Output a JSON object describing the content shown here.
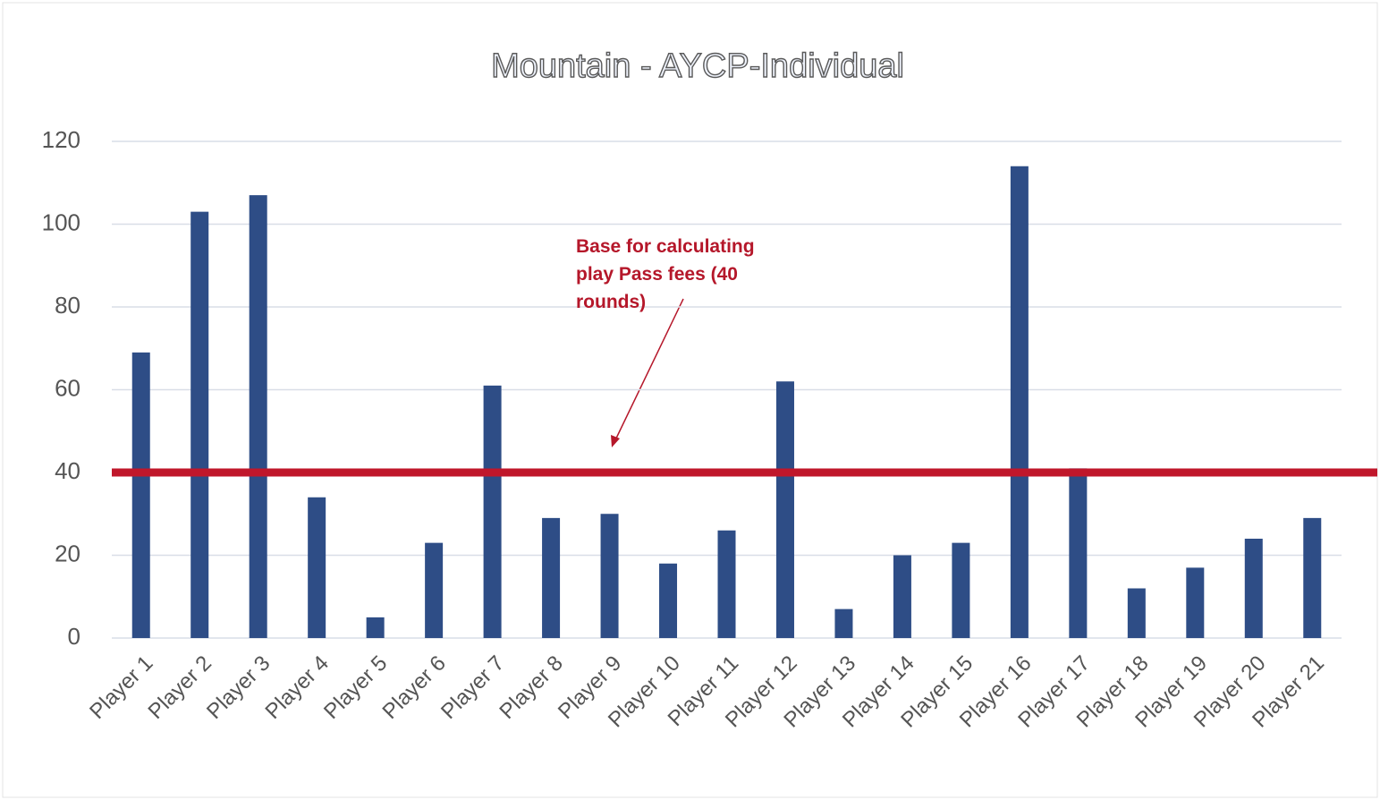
{
  "chart_data": {
    "type": "bar",
    "title": "Mountain - AYCP-Individual",
    "categories": [
      "Player 1",
      "Player 2",
      "Player 3",
      "Player 4",
      "Player 5",
      "Player 6",
      "Player 7",
      "Player 8",
      "Player 9",
      "Player 10",
      "Player 11",
      "Player 12",
      "Player 13",
      "Player 14",
      "Player 15",
      "Player 16",
      "Player 17",
      "Player 18",
      "Player 19",
      "Player 20",
      "Player 21"
    ],
    "values": [
      69,
      103,
      107,
      34,
      5,
      23,
      61,
      29,
      30,
      18,
      26,
      62,
      7,
      20,
      23,
      114,
      41,
      12,
      17,
      24,
      29
    ],
    "color": "#2e4d86",
    "ylim": [
      0,
      120
    ],
    "yticks": [
      0,
      20,
      40,
      60,
      80,
      100,
      120
    ],
    "grid": true,
    "reference_line": {
      "value": 40,
      "color": "#c0172b"
    },
    "annotation": "Base for calculating play Pass fees (40 rounds)"
  }
}
